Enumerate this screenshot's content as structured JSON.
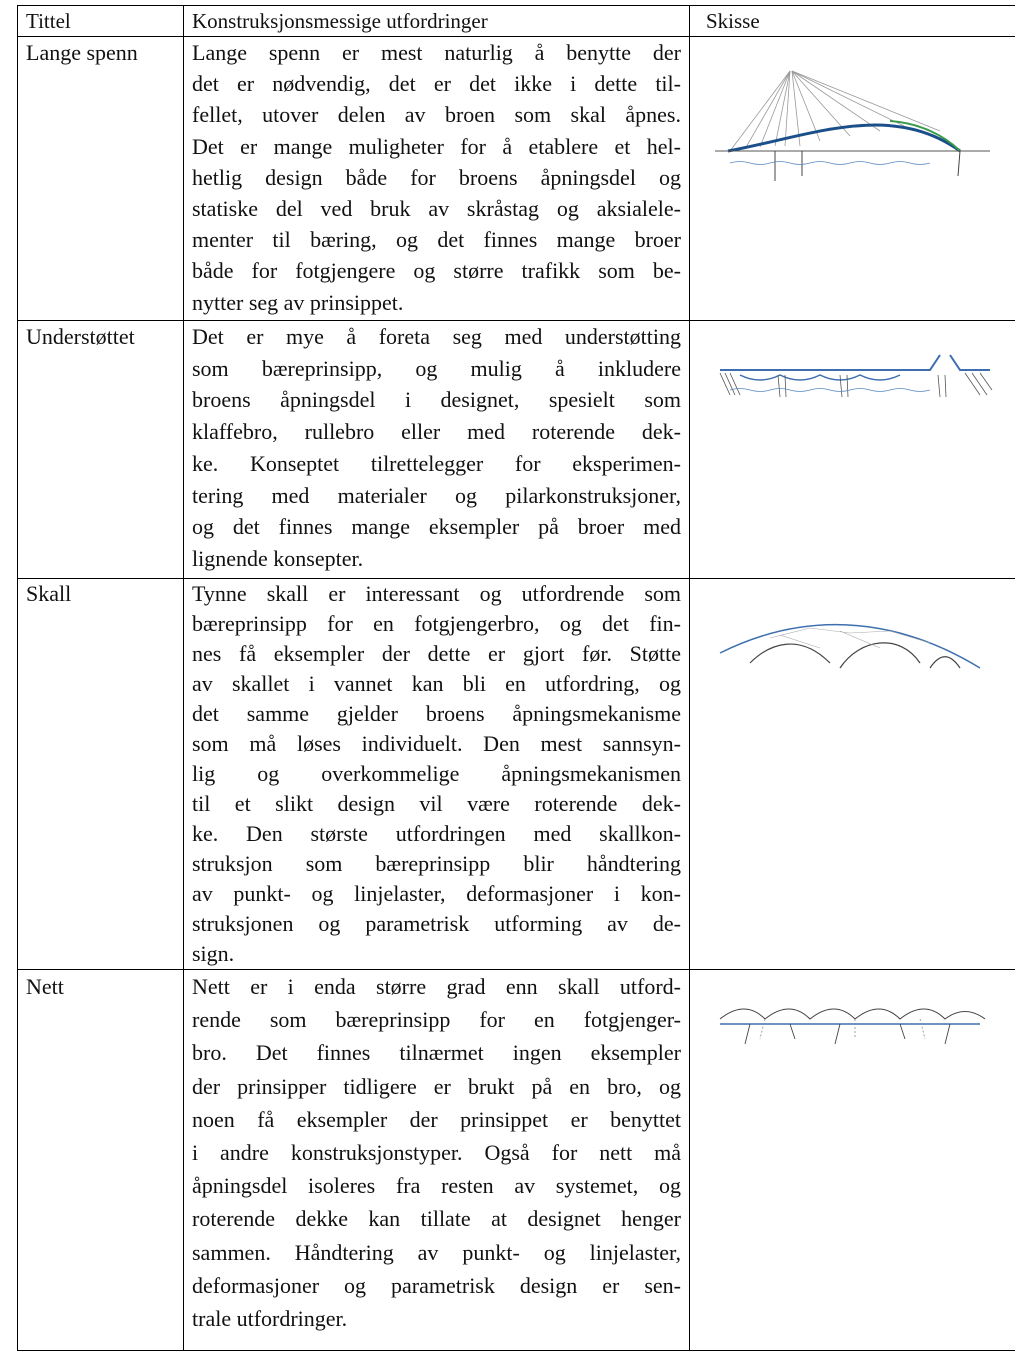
{
  "table": {
    "header": [
      "Tittel",
      "Konstruksjonsmessige utfordringer",
      "Skisse"
    ],
    "rows": [
      {
        "title": "Lange spenn",
        "lines": [
          "Lange spenn er mest naturlig å benytte der",
          "det er nødvendig, det er det ikke i dette til-",
          "fellet, utover delen av broen som skal åpnes.",
          "Det er mange muligheter for å etablere et hel-",
          "hetlig design både for broens åpningsdel og",
          "statiske del ved bruk av skråstag og aksialele-",
          "menter til bæring, og det finnes mange broer",
          "både for fotgjengere og større trafikk som be-",
          "nytter seg av prinsippet."
        ]
      },
      {
        "title": "Understøttet",
        "lines": [
          "Det er mye å foreta seg med understøtting",
          "som bæreprinsipp, og mulig å inkludere",
          "broens åpningsdel i designet, spesielt som",
          "klaffebro, rullebro eller med roterende dek-",
          "ke. Konseptet tilrettelegger for eksperimen-",
          "tering med materialer og pilarkonstruksjoner,",
          "og det finnes mange eksempler på broer med",
          "lignende konsepter."
        ]
      },
      {
        "title": "Skall",
        "lines": [
          "Tynne skall er interessant og utfordrende som",
          "bæreprinsipp for en fotgjengerbro, og det fin-",
          "nes få eksempler der dette er gjort før. Støtte",
          "av skallet i vannet kan bli en utfordring, og",
          "det samme gjelder broens åpningsmekanisme",
          "som må løses individuelt. Den mest sannsyn-",
          "lig og overkommelige åpningsmekanismen",
          "til et slikt design vil være roterende dek-",
          "ke. Den største utfordringen med skallkon-",
          "struksjon som bæreprinsipp blir håndtering",
          "av punkt- og linjelaster, deformasjoner i kon-",
          "struksjonen og parametrisk utforming av de-",
          "sign."
        ]
      },
      {
        "title": "Nett",
        "lines": [
          "Nett er i enda større grad enn skall utford-",
          "rende som bæreprinsipp for en fotgjenger-",
          "bro. Det finnes tilnærmet ingen eksempler",
          "der prinsipper tidligere er brukt på en bro, og",
          "noen få eksempler der prinsippet er benyttet",
          "i andre konstruksjonstyper. Også for nett må",
          "åpningsdel isoleres fra resten av systemet, og",
          "roterende dekke kan tillate at designet henger",
          "sammen. Håndtering av punkt- og linjelaster,",
          "deformasjoner og parametrisk design er sen-",
          "trale utfordringer."
        ]
      }
    ]
  }
}
